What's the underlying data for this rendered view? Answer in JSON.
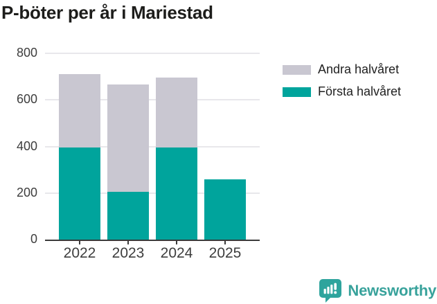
{
  "chart_data": {
    "type": "bar",
    "stacked": true,
    "title": "P-böter per år i Mariestad",
    "categories": [
      "2022",
      "2023",
      "2024",
      "2025"
    ],
    "series": [
      {
        "name": "Första halvåret",
        "color": "#00a49c",
        "values": [
          395,
          205,
          395,
          260
        ]
      },
      {
        "name": "Andra halvåret",
        "color": "#c9c7d1",
        "values": [
          315,
          460,
          300,
          0
        ]
      }
    ],
    "totals": [
      710,
      665,
      695,
      260
    ],
    "xlabel": "",
    "ylabel": "",
    "ylim": [
      0,
      800
    ],
    "yticks": [
      0,
      200,
      400,
      600,
      800
    ],
    "grid": "horizontal",
    "legend_position": "right"
  },
  "legend": {
    "items": [
      {
        "label": "Andra halvåret",
        "color": "#c9c7d1"
      },
      {
        "label": "Första halvåret",
        "color": "#00a49c"
      }
    ]
  },
  "footer": {
    "brand": "Newsworthy",
    "logo_icon": "bar-chart-speech-bubble-icon"
  },
  "colors": {
    "accent_teal": "#00a49c",
    "secondary_gray": "#c9c7d1",
    "gridline": "#e8e7eb",
    "axis": "#3a3a3a",
    "tick_text": "#3d3d3d",
    "title_text": "#1d1d1b",
    "brand_teal": "#38a29b"
  }
}
